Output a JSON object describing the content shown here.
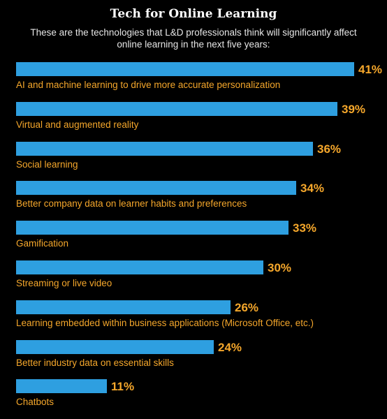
{
  "chart_data": {
    "type": "bar",
    "orientation": "horizontal",
    "title": "Tech for Online Learning",
    "subtitle": "These are the technologies that L&D professionals think will significantly affect online learning in the next five years:",
    "categories": [
      "AI and machine learning to drive more accurate personalization",
      "Virtual and augmented reality",
      "Social learning",
      "Better company data on learner habits and preferences",
      "Gamification",
      "Streaming or live video",
      "Learning embedded within business applications (Microsoft Office, etc.)",
      "Better industry data on essential skills",
      "Chatbots"
    ],
    "values": [
      41,
      39,
      36,
      34,
      33,
      30,
      26,
      24,
      11
    ],
    "value_labels": [
      "41%",
      "39%",
      "36%",
      "34%",
      "33%",
      "30%",
      "26%",
      "24%",
      "11%"
    ],
    "xlim": [
      0,
      41
    ],
    "grid": false,
    "legend": "none",
    "colors": {
      "bar": "#2e9fe0",
      "label": "#f5a72b",
      "background": "#000000"
    }
  }
}
